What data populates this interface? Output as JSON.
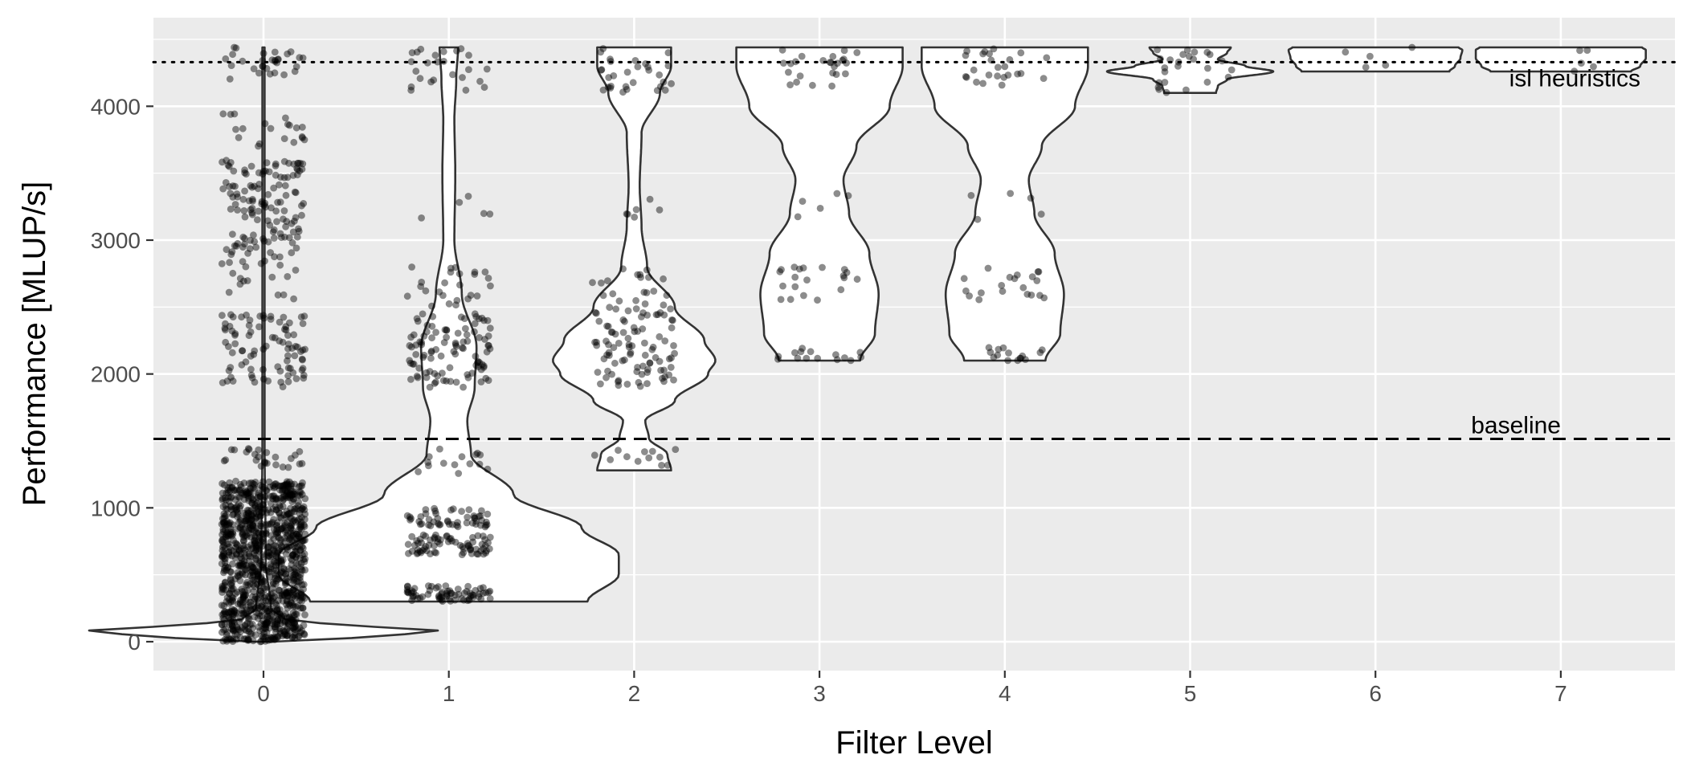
{
  "chart_data": {
    "type": "violin",
    "xlabel": "Filter Level",
    "ylabel": "Performance [MLUP/s]",
    "title": "",
    "x_categories": [
      "0",
      "1",
      "2",
      "3",
      "4",
      "5",
      "6",
      "7"
    ],
    "y_ticks": [
      0,
      1000,
      2000,
      3000,
      4000
    ],
    "ylim": [
      -230,
      4650
    ],
    "grid": true,
    "panel_background": "#ebebeb",
    "grid_color": "#ffffff",
    "violin_fill": "#ffffff",
    "violin_outline": "#333333",
    "point_color": "#000000",
    "reference_lines": [
      {
        "label": "isl heuristics",
        "value": 4330,
        "style": "dotted"
      },
      {
        "label": "baseline",
        "value": 1515,
        "style": "dashed"
      }
    ],
    "series": [
      {
        "x": "0",
        "min": 0,
        "max": 4440,
        "profile": [
          [
            0,
            0.05
          ],
          [
            40,
            0.6
          ],
          [
            75,
            1.0
          ],
          [
            110,
            0.6
          ],
          [
            160,
            0.12
          ],
          [
            250,
            0.04
          ],
          [
            600,
            0.012
          ],
          [
            1500,
            0.006
          ],
          [
            4440,
            0.006
          ]
        ],
        "points": [
          {
            "from": 0,
            "to": 1200,
            "n": 1100
          },
          {
            "from": 1300,
            "to": 1450,
            "n": 25
          },
          {
            "from": 1900,
            "to": 2450,
            "n": 90
          },
          {
            "from": 2550,
            "to": 3000,
            "n": 40
          },
          {
            "from": 3000,
            "to": 3600,
            "n": 110
          },
          {
            "from": 3700,
            "to": 3950,
            "n": 20
          },
          {
            "from": 4200,
            "to": 4440,
            "n": 30
          }
        ]
      },
      {
        "x": "1",
        "min": 300,
        "max": 4440,
        "profile": [
          [
            300,
            0.75
          ],
          [
            500,
            0.92
          ],
          [
            650,
            0.92
          ],
          [
            850,
            0.72
          ],
          [
            1100,
            0.35
          ],
          [
            1400,
            0.12
          ],
          [
            1650,
            0.1
          ],
          [
            1900,
            0.14
          ],
          [
            2200,
            0.15
          ],
          [
            2600,
            0.07
          ],
          [
            3000,
            0.03
          ],
          [
            3500,
            0.035
          ],
          [
            3900,
            0.03
          ],
          [
            4200,
            0.04
          ],
          [
            4440,
            0.05
          ]
        ],
        "points": [
          {
            "from": 300,
            "to": 420,
            "n": 70
          },
          {
            "from": 650,
            "to": 800,
            "n": 70
          },
          {
            "from": 850,
            "to": 1000,
            "n": 50
          },
          {
            "from": 1250,
            "to": 1450,
            "n": 15
          },
          {
            "from": 1900,
            "to": 2450,
            "n": 100
          },
          {
            "from": 2500,
            "to": 2800,
            "n": 25
          },
          {
            "from": 3150,
            "to": 3350,
            "n": 5
          },
          {
            "from": 4100,
            "to": 4440,
            "n": 25
          }
        ]
      },
      {
        "x": "2",
        "min": 1280,
        "max": 4440,
        "profile": [
          [
            1280,
            0.2
          ],
          [
            1400,
            0.18
          ],
          [
            1520,
            0.08
          ],
          [
            1650,
            0.06
          ],
          [
            1800,
            0.22
          ],
          [
            2000,
            0.4
          ],
          [
            2100,
            0.44
          ],
          [
            2250,
            0.38
          ],
          [
            2500,
            0.22
          ],
          [
            2800,
            0.07
          ],
          [
            3100,
            0.04
          ],
          [
            3400,
            0.03
          ],
          [
            3800,
            0.04
          ],
          [
            4100,
            0.14
          ],
          [
            4300,
            0.2
          ],
          [
            4440,
            0.2
          ]
        ],
        "points": [
          {
            "from": 1300,
            "to": 1450,
            "n": 12
          },
          {
            "from": 1900,
            "to": 2500,
            "n": 90
          },
          {
            "from": 2500,
            "to": 2800,
            "n": 20
          },
          {
            "from": 3150,
            "to": 3350,
            "n": 6
          },
          {
            "from": 4100,
            "to": 4440,
            "n": 30
          }
        ]
      },
      {
        "x": "3",
        "min": 2100,
        "max": 4440,
        "profile": [
          [
            2100,
            0.22
          ],
          [
            2300,
            0.3
          ],
          [
            2600,
            0.32
          ],
          [
            2900,
            0.27
          ],
          [
            3200,
            0.16
          ],
          [
            3450,
            0.13
          ],
          [
            3700,
            0.2
          ],
          [
            4000,
            0.38
          ],
          [
            4300,
            0.45
          ],
          [
            4440,
            0.45
          ]
        ],
        "points": [
          {
            "from": 2100,
            "to": 2200,
            "n": 15
          },
          {
            "from": 2550,
            "to": 2800,
            "n": 20
          },
          {
            "from": 3150,
            "to": 3350,
            "n": 5
          },
          {
            "from": 4150,
            "to": 4440,
            "n": 25
          }
        ]
      },
      {
        "x": "4",
        "min": 2100,
        "max": 4440,
        "profile": [
          [
            2100,
            0.22
          ],
          [
            2300,
            0.3
          ],
          [
            2600,
            0.32
          ],
          [
            2900,
            0.27
          ],
          [
            3200,
            0.16
          ],
          [
            3450,
            0.13
          ],
          [
            3700,
            0.2
          ],
          [
            4000,
            0.38
          ],
          [
            4300,
            0.45
          ],
          [
            4440,
            0.45
          ]
        ],
        "points": [
          {
            "from": 2100,
            "to": 2200,
            "n": 15
          },
          {
            "from": 2550,
            "to": 2800,
            "n": 20
          },
          {
            "from": 3150,
            "to": 3350,
            "n": 5
          },
          {
            "from": 4150,
            "to": 4440,
            "n": 25
          }
        ]
      },
      {
        "x": "5",
        "min": 4100,
        "max": 4440,
        "profile": [
          [
            4100,
            0.14
          ],
          [
            4150,
            0.15
          ],
          [
            4200,
            0.2
          ],
          [
            4260,
            0.45
          ],
          [
            4300,
            0.3
          ],
          [
            4350,
            0.15
          ],
          [
            4400,
            0.2
          ],
          [
            4440,
            0.22
          ]
        ],
        "points": [
          {
            "from": 4100,
            "to": 4440,
            "n": 25
          }
        ]
      },
      {
        "x": "6",
        "min": 4260,
        "max": 4440,
        "profile": [
          [
            4260,
            0.4
          ],
          [
            4300,
            0.43
          ],
          [
            4360,
            0.46
          ],
          [
            4420,
            0.47
          ],
          [
            4440,
            0.45
          ]
        ],
        "points": [
          {
            "from": 4260,
            "to": 4440,
            "n": 5
          }
        ]
      },
      {
        "x": "7",
        "min": 4260,
        "max": 4440,
        "profile": [
          [
            4260,
            0.38
          ],
          [
            4300,
            0.43
          ],
          [
            4360,
            0.46
          ],
          [
            4420,
            0.46
          ],
          [
            4440,
            0.44
          ]
        ],
        "points": [
          {
            "from": 4260,
            "to": 4440,
            "n": 5
          }
        ]
      }
    ]
  }
}
